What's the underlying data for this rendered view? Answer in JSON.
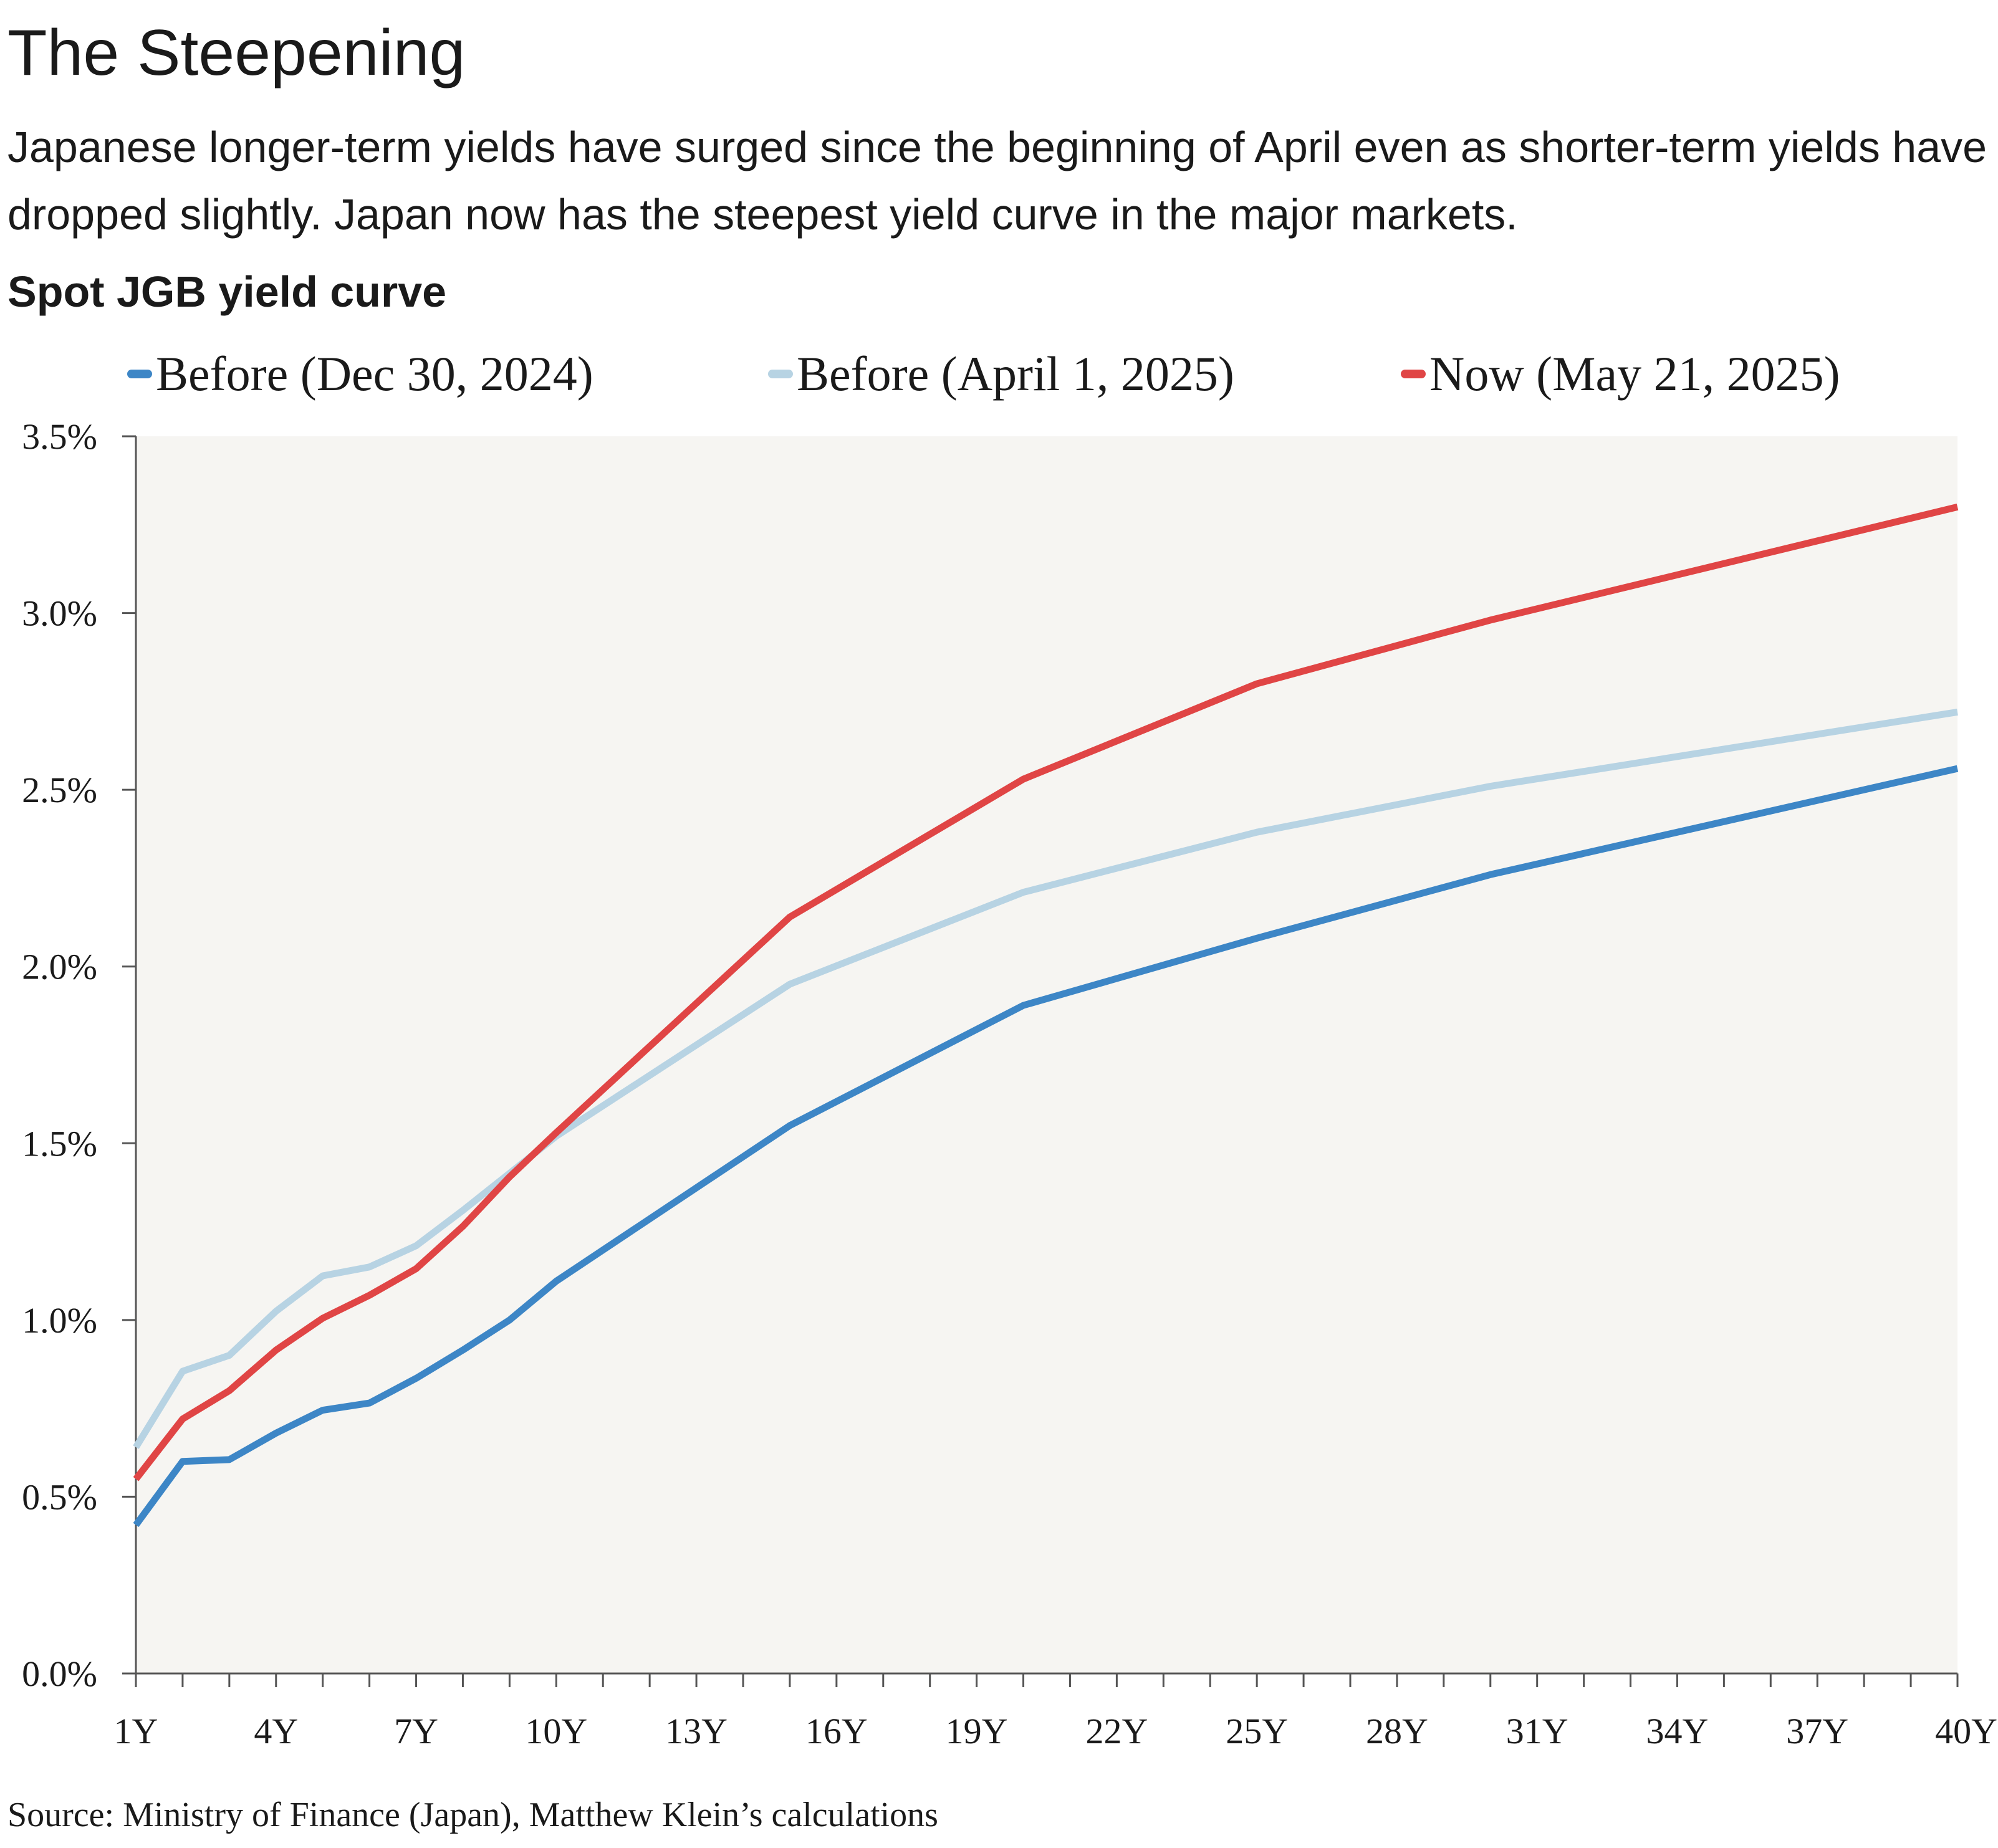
{
  "header": {
    "title": "The Steepening",
    "subtitle": "Japanese longer-term yields have surged since the beginning of April even as shorter-term yields have dropped slightly. Japan now has the steepest yield curve in the major markets."
  },
  "source": "Source: Ministry of Finance (Japan), Matthew Klein’s calculations",
  "chart_data": {
    "type": "line",
    "title": "Spot JGB yield curve",
    "xlabel": "",
    "ylabel": "",
    "x": [
      1,
      2,
      3,
      4,
      5,
      6,
      7,
      8,
      9,
      10,
      15,
      20,
      25,
      30,
      40
    ],
    "x_ticks": [
      "1Y",
      "4Y",
      "7Y",
      "10Y",
      "13Y",
      "16Y",
      "19Y",
      "22Y",
      "25Y",
      "28Y",
      "31Y",
      "34Y",
      "37Y",
      "40Y"
    ],
    "x_tick_values": [
      1,
      4,
      7,
      10,
      13,
      16,
      19,
      22,
      25,
      28,
      31,
      34,
      37,
      40
    ],
    "xlim": [
      1,
      40
    ],
    "y_ticks": [
      "0.0%",
      "0.5%",
      "1.0%",
      "1.5%",
      "2.0%",
      "2.5%",
      "3.0%",
      "3.5%"
    ],
    "y_tick_values": [
      0,
      0.5,
      1.0,
      1.5,
      2.0,
      2.5,
      3.0,
      3.5
    ],
    "ylim": [
      0,
      3.5
    ],
    "grid": false,
    "legend_position": "top",
    "background": "#f6f5f2",
    "series": [
      {
        "name": "Before (Dec 30, 2024)",
        "color": "#3d86c6",
        "values": [
          0.42,
          0.6,
          0.605,
          0.68,
          0.745,
          0.765,
          0.835,
          0.915,
          1.0,
          1.11,
          1.55,
          1.89,
          2.08,
          2.26,
          2.56
        ]
      },
      {
        "name": "Before (April 1, 2025)",
        "color": "#b7d3e3",
        "values": [
          0.64,
          0.855,
          0.9,
          1.025,
          1.125,
          1.15,
          1.21,
          1.31,
          1.415,
          1.52,
          1.95,
          2.21,
          2.38,
          2.51,
          2.72
        ]
      },
      {
        "name": "Now (May 21, 2025)",
        "color": "#e04545",
        "values": [
          0.55,
          0.72,
          0.8,
          0.915,
          1.005,
          1.07,
          1.145,
          1.265,
          1.405,
          1.53,
          2.14,
          2.53,
          2.8,
          2.98,
          3.3
        ]
      }
    ]
  }
}
